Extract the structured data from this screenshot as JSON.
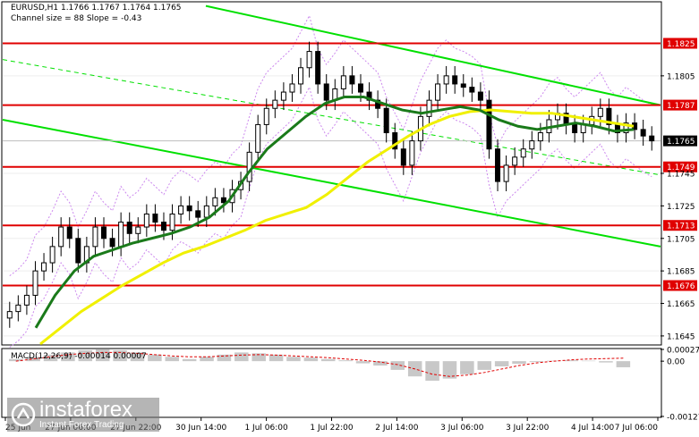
{
  "header": {
    "symbol_line": "EURUSD,H1  1.1766 1.1767 1.1764 1.1765",
    "channel_line": "Channel size = 88 Slope = -0.43"
  },
  "macd_label": "MACD(12,26,9) -0.00014 0.00007",
  "watermark": {
    "brand": "instaforex",
    "slogan": "Instant Forex Trading"
  },
  "colors": {
    "channel": "#00e000",
    "level": "#e00000",
    "ma_fast": "#1a7a1a",
    "ma_slow": "#f0f000",
    "bollinger": "#cc88ee",
    "price_line": "#c0c0c0",
    "macd_hist": "#c8c8c8",
    "macd_signal": "#e00000",
    "candle": "#000000"
  },
  "chart_data": [
    {
      "type": "candlestick",
      "title": "EURUSD,H1",
      "ylim": [
        1.164,
        1.185
      ],
      "y_ticks": [
        "1.1825",
        "1.1805",
        "1.1787",
        "1.1765",
        "1.1749",
        "1.1745",
        "1.1725",
        "1.1713",
        "1.1705",
        "1.1685",
        "1.1676",
        "1.1665",
        "1.1645"
      ],
      "x_ticks": [
        "25 Jun",
        "27 Jun 06:00",
        "27 Jun 22:00",
        "30 Jun 14:00",
        "1 Jul 06:00",
        "1 Jul 22:00",
        "2 Jul 14:00",
        "3 Jul 06:00",
        "3 Jul 22:00",
        "4 Jul 14:00",
        "7 Jul 06:00"
      ],
      "current_price": 1.1765,
      "horizontal_levels": [
        1.1825,
        1.1787,
        1.1749,
        1.1713,
        1.1676
      ],
      "close_series": [
        1.166,
        1.1664,
        1.167,
        1.1685,
        1.169,
        1.17,
        1.1712,
        1.1705,
        1.169,
        1.17,
        1.1712,
        1.1705,
        1.17,
        1.1715,
        1.1708,
        1.1712,
        1.172,
        1.1715,
        1.171,
        1.172,
        1.1725,
        1.1722,
        1.1718,
        1.1725,
        1.173,
        1.1727,
        1.1735,
        1.174,
        1.1758,
        1.1775,
        1.1785,
        1.179,
        1.1795,
        1.18,
        1.181,
        1.182,
        1.18,
        1.179,
        1.1797,
        1.1805,
        1.18,
        1.1795,
        1.179,
        1.1785,
        1.177,
        1.176,
        1.175,
        1.1765,
        1.178,
        1.179,
        1.18,
        1.1805,
        1.18,
        1.1798,
        1.1795,
        1.179,
        1.176,
        1.174,
        1.175,
        1.1755,
        1.176,
        1.1765,
        1.177,
        1.1778,
        1.1782,
        1.1775,
        1.177,
        1.1775,
        1.178,
        1.1785,
        1.1775,
        1.177,
        1.1776,
        1.1772,
        1.1768,
        1.1765
      ],
      "ma_slow": [
        1.164,
        1.165,
        1.166,
        1.1668,
        1.1676,
        1.1683,
        1.169,
        1.1696,
        1.17,
        1.1705,
        1.171,
        1.1716,
        1.172,
        1.1724,
        1.1732,
        1.1742,
        1.1752,
        1.176,
        1.1768,
        1.1775,
        1.178,
        1.1783,
        1.1784,
        1.1783,
        1.1782,
        1.1782,
        1.178,
        1.1778,
        1.1776,
        1.1774
      ],
      "ma_fast": [
        1.165,
        1.167,
        1.1685,
        1.1694,
        1.1698,
        1.1702,
        1.1705,
        1.1708,
        1.1712,
        1.1718,
        1.1728,
        1.1745,
        1.176,
        1.177,
        1.178,
        1.1788,
        1.1792,
        1.1792,
        1.1788,
        1.1784,
        1.1782,
        1.1784,
        1.1786,
        1.1784,
        1.1778,
        1.1774,
        1.1772,
        1.1774,
        1.1776,
        1.1774,
        1.1771,
        1.1772
      ]
    },
    {
      "type": "bar",
      "title": "MACD(12,26,9)",
      "ylim": [
        -0.00127,
        0.00027
      ],
      "y_ticks": [
        "0.00027",
        "0.00",
        "-0.00127"
      ],
      "histogram": [
        5e-05,
        0.0001,
        0.00015,
        0.0002,
        0.00025,
        0.00027,
        0.00025,
        0.0002,
        0.00015,
        0.0001,
        5e-05,
        0.0001,
        0.00015,
        0.0002,
        0.00018,
        0.00015,
        0.0001,
        8e-05,
        5e-05,
        2e-05,
        -5e-05,
        -0.0001,
        -0.0002,
        -0.00035,
        -0.00045,
        -0.0004,
        -0.0003,
        -0.0002,
        -0.00012,
        -6e-05,
        -2e-05,
        1e-05,
        2e-05,
        1e-05,
        -3e-05,
        -0.00014
      ],
      "signal": [
        0.0,
        5e-05,
        0.0001,
        0.00015,
        0.00018,
        0.0002,
        0.0002,
        0.00018,
        0.00015,
        0.00012,
        0.0001,
        0.0001,
        0.00012,
        0.00014,
        0.00015,
        0.00014,
        0.00012,
        0.0001,
        8e-05,
        5e-05,
        2e-05,
        -2e-05,
        -8e-05,
        -0.00018,
        -0.0003,
        -0.00035,
        -0.00032,
        -0.00026,
        -0.00018,
        -0.0001,
        -4e-05,
        0.0,
        3e-05,
        5e-05,
        6e-05,
        7e-05
      ]
    }
  ]
}
